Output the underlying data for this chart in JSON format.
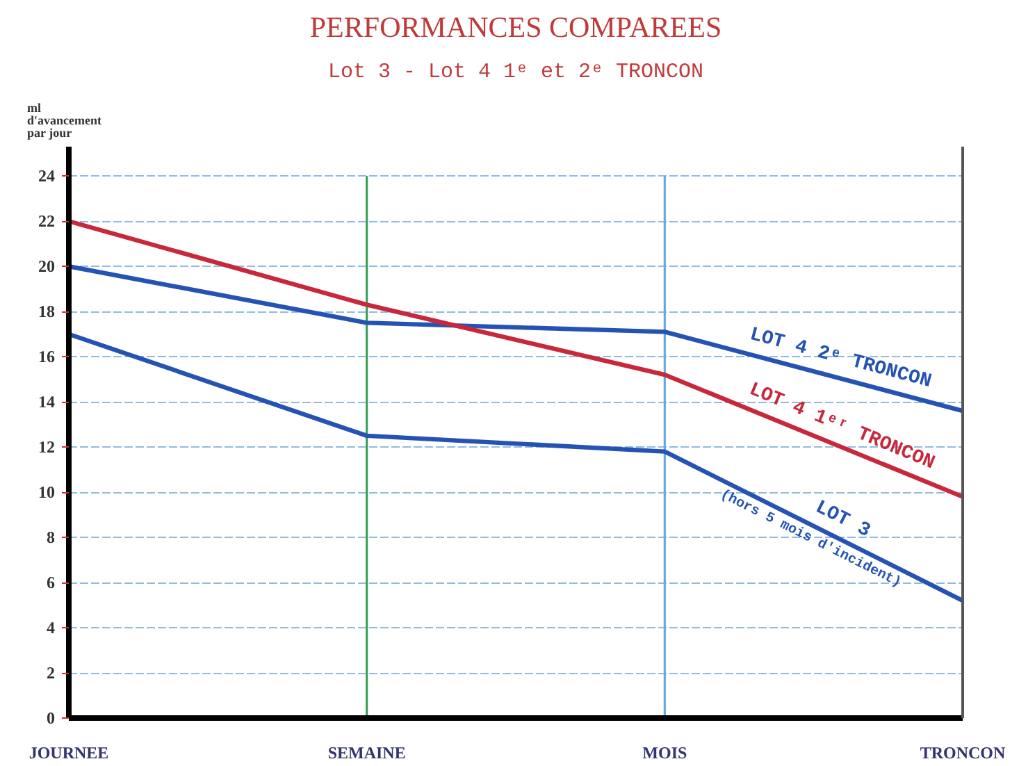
{
  "chart_data": {
    "type": "line",
    "title": "PERFORMANCES COMPAREES",
    "subtitle": "Lot 3 - Lot 4 1ᵉ et 2ᵉ TRONCON",
    "ylabel": "ml d'avancement par jour",
    "categories": [
      "JOURNEE",
      "SEMAINE",
      "MOIS",
      "TRONCON"
    ],
    "series": [
      {
        "name": "LOT 4 2ᵉ TRONCON",
        "color": "#2553b3",
        "values": [
          20,
          17.5,
          17.1,
          13.6
        ]
      },
      {
        "name": "LOT 4 1ᵉʳ TRONCON",
        "color": "#c8283c",
        "values": [
          22,
          18.3,
          15.2,
          9.8
        ]
      },
      {
        "name": "LOT 3",
        "color": "#2553b3",
        "values": [
          17,
          12.5,
          11.8,
          5.2
        ]
      }
    ],
    "annotations": [
      "(hors 5 mois d'incident)"
    ],
    "ylim": [
      0,
      25.3
    ],
    "yticks": [
      0,
      2,
      4,
      6,
      8,
      10,
      12,
      14,
      16,
      18,
      20,
      22,
      24
    ],
    "grid": "y",
    "ref_lines": [
      {
        "axis": "x",
        "value": "SEMAINE",
        "color": "#3aa05a"
      },
      {
        "axis": "x",
        "value": "MOIS",
        "color": "#6aa8e0"
      }
    ]
  }
}
